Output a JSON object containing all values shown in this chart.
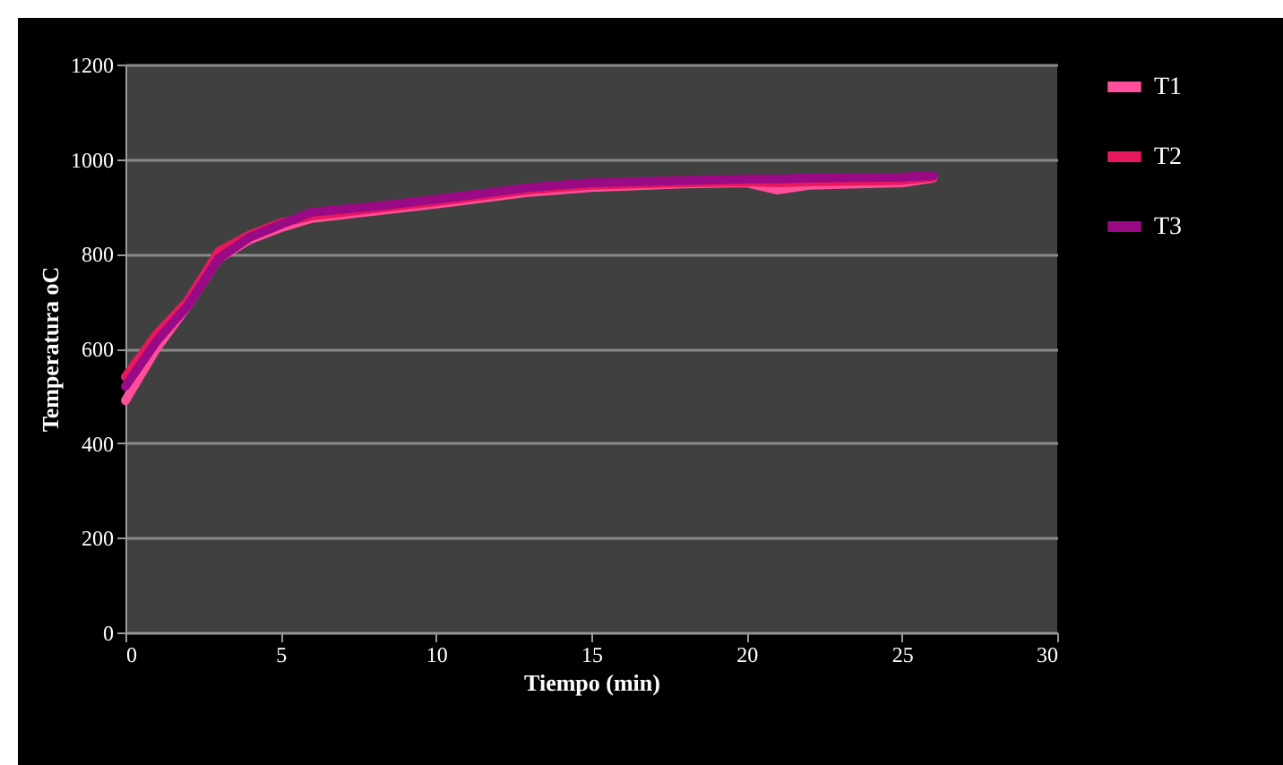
{
  "chart_data": {
    "type": "line",
    "xlabel": "Tiempo (min)",
    "ylabel": "Temperatura oC",
    "x": [
      0,
      1,
      2,
      3,
      4,
      5,
      6,
      8,
      10,
      13,
      15,
      18,
      20,
      21,
      22,
      25,
      26
    ],
    "series": [
      {
        "name": "T1",
        "color": "#ff4f9a",
        "values": [
          490,
          600,
          690,
          790,
          830,
          855,
          875,
          890,
          905,
          930,
          940,
          948,
          950,
          935,
          945,
          950,
          960
        ]
      },
      {
        "name": "T2",
        "color": "#e8185e",
        "values": [
          540,
          630,
          700,
          805,
          840,
          865,
          880,
          895,
          910,
          935,
          945,
          950,
          952,
          950,
          952,
          955,
          962
        ]
      },
      {
        "name": "T3",
        "color": "#9a0a85",
        "values": [
          520,
          615,
          690,
          790,
          835,
          862,
          888,
          900,
          915,
          940,
          950,
          955,
          958,
          958,
          960,
          962,
          965
        ]
      }
    ],
    "xlim": [
      0,
      30
    ],
    "xticks": [
      0,
      5,
      10,
      15,
      20,
      25,
      30
    ],
    "ylim": [
      0,
      1200
    ],
    "yticks": [
      0,
      200,
      400,
      600,
      800,
      1000,
      1200
    ],
    "grid": "y",
    "legend": "right",
    "marker": "none",
    "line_style": "solid"
  }
}
